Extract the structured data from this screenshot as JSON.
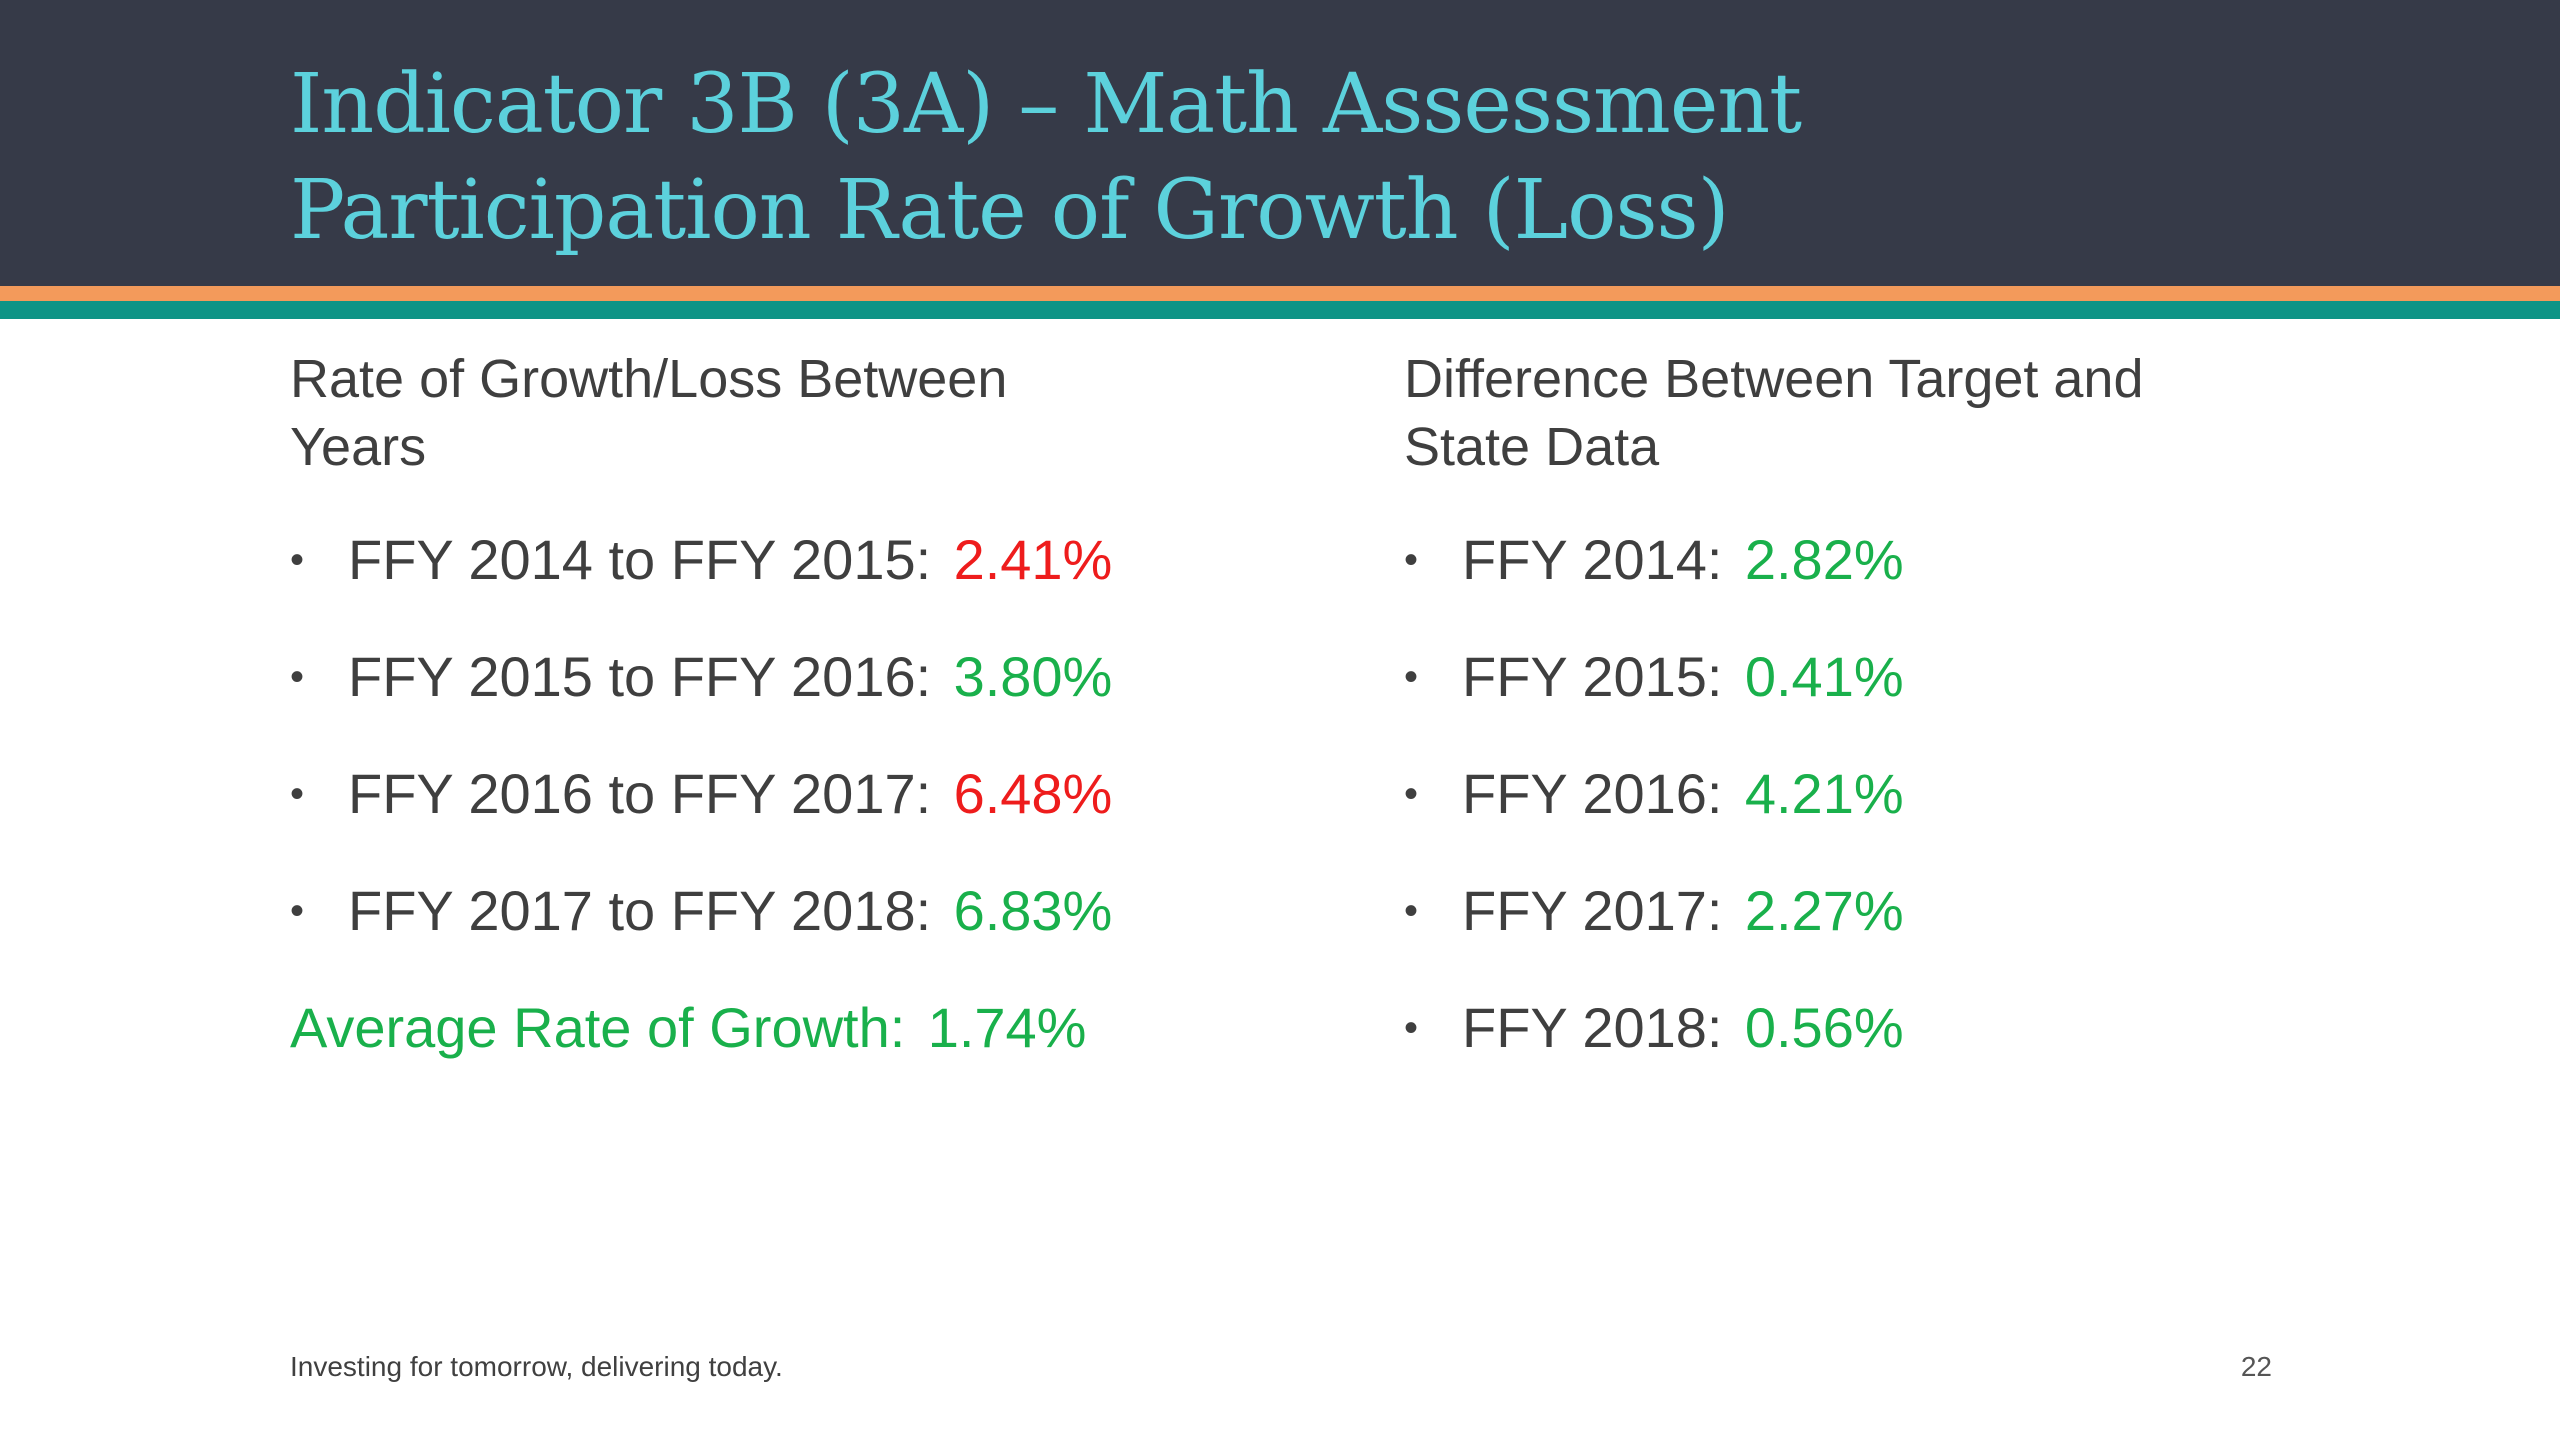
{
  "slide": {
    "title_line1": "Indicator 3B (3A) – Math Assessment",
    "title_line2": "Participation Rate of Growth (Loss)",
    "colors": {
      "title_bar": "#363a48",
      "title_text": "#5cd1dc",
      "stripe_orange": "#f39a5b",
      "stripe_teal": "#0e9486",
      "negative": "#ee1c1c",
      "positive": "#19b04b"
    }
  },
  "left": {
    "heading_line1": "Rate of Growth/Loss Between",
    "heading_line2": "Years",
    "items": [
      {
        "label": "FFY 2014 to FFY 2015:",
        "value": "2.41%",
        "status": "red"
      },
      {
        "label": "FFY 2015 to FFY 2016:",
        "value": "3.80%",
        "status": "green"
      },
      {
        "label": "FFY 2016 to FFY 2017:",
        "value": "6.48%",
        "status": "red"
      },
      {
        "label": "FFY 2017 to FFY 2018:",
        "value": "6.83%",
        "status": "green"
      }
    ],
    "average_label": "Average Rate of Growth:",
    "average_value": "1.74%"
  },
  "right": {
    "heading_line1": "Difference Between Target and",
    "heading_line2": "State Data",
    "items": [
      {
        "label": "FFY 2014:",
        "value": "2.82%",
        "status": "green"
      },
      {
        "label": "FFY 2015:",
        "value": "0.41%",
        "status": "green"
      },
      {
        "label": "FFY 2016:",
        "value": "4.21%",
        "status": "green"
      },
      {
        "label": "FFY 2017:",
        "value": "2.27%",
        "status": "green"
      },
      {
        "label": "FFY 2018:",
        "value": "0.56%",
        "status": "green"
      }
    ]
  },
  "footer": {
    "tagline": "Investing for tomorrow, delivering today.",
    "page_number": "22"
  }
}
